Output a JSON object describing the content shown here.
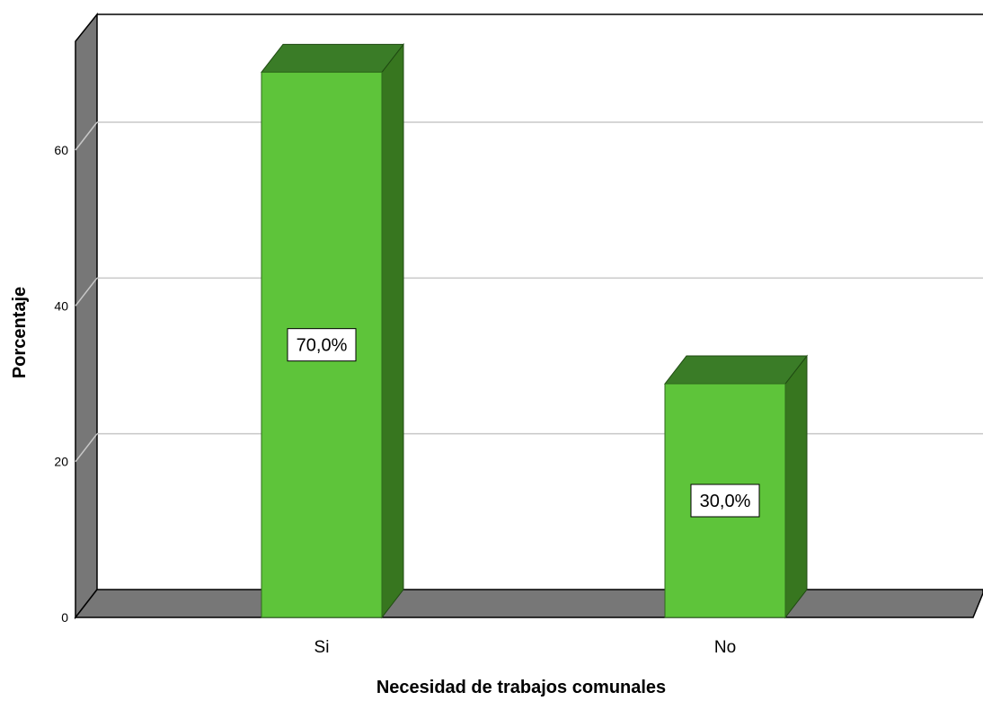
{
  "chart_data": {
    "type": "bar",
    "categories": [
      "Si",
      "No"
    ],
    "values": [
      70.0,
      30.0
    ],
    "data_labels": [
      "70,0%",
      "30,0%"
    ],
    "xlabel": "Necesidad de trabajos comunales",
    "ylabel": "Porcentaje",
    "ylim": [
      0,
      75
    ],
    "yticks": [
      0,
      20,
      40,
      60
    ],
    "grid": true,
    "style": "3d",
    "colors": {
      "bar_front": "#5ec43a",
      "bar_top": "#3a7c27",
      "bar_side": "#37761f",
      "wall": "#777777",
      "gridline": "#c8c8c8"
    }
  }
}
